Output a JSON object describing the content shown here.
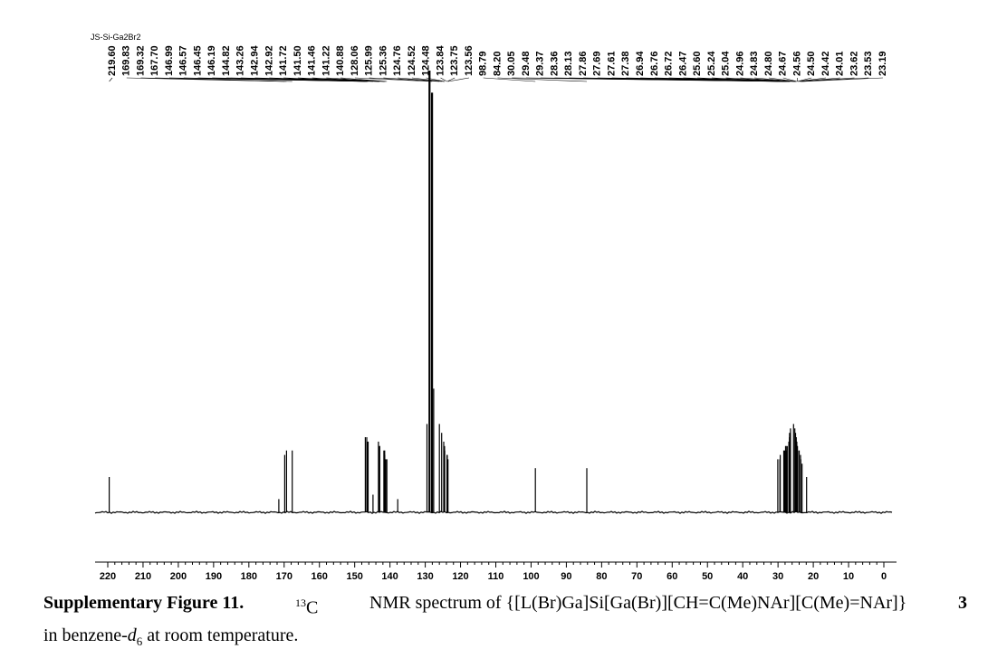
{
  "figure": {
    "sample_id": "JS-Si-Ga2Br2",
    "caption": {
      "label": "Supplementary Figure 11.",
      "nucleus_mass": "13",
      "nucleus_symbol": "C",
      "text_main": "NMR spectrum of {[L(Br)Ga]Si[Ga(Br)][CH=C(Me)NAr][C(Me)=NAr]}",
      "compound_number": "3",
      "line2_prefix": "in benzene-",
      "line2_italic": "d",
      "line2_sub": "6",
      "line2_suffix": " at room temperature."
    }
  },
  "chart_data": {
    "type": "line",
    "title": "",
    "xlabel": "",
    "ylabel": "",
    "x_unit": "ppm",
    "x_reversed": true,
    "xlim": [
      220,
      0
    ],
    "x_ticks": [
      220,
      210,
      200,
      190,
      180,
      170,
      160,
      150,
      140,
      130,
      120,
      110,
      100,
      90,
      80,
      70,
      60,
      50,
      40,
      30,
      20,
      10,
      0
    ],
    "grid": false,
    "peak_labels": [
      "219.60",
      "169.83",
      "169.32",
      "167.70",
      "146.99",
      "146.57",
      "146.45",
      "146.19",
      "144.82",
      "143.26",
      "142.94",
      "142.92",
      "141.72",
      "141.50",
      "141.46",
      "141.22",
      "140.88",
      "128.06",
      "125.99",
      "125.36",
      "124.76",
      "124.52",
      "124.48",
      "123.84",
      "123.75",
      "123.56",
      "98.79",
      "84.20",
      "30.05",
      "29.48",
      "29.37",
      "28.36",
      "28.13",
      "27.86",
      "27.69",
      "27.61",
      "27.38",
      "26.94",
      "26.76",
      "26.72",
      "26.47",
      "25.60",
      "25.24",
      "25.04",
      "24.96",
      "24.83",
      "24.80",
      "24.67",
      "24.56",
      "24.50",
      "24.42",
      "24.01",
      "23.62",
      "23.53",
      "23.19"
    ],
    "peaks": [
      {
        "x": 219.6,
        "y": 0.08
      },
      {
        "x": 169.83,
        "y": 0.13
      },
      {
        "x": 169.32,
        "y": 0.14
      },
      {
        "x": 167.7,
        "y": 0.14
      },
      {
        "x": 171.5,
        "y": 0.03
      },
      {
        "x": 146.99,
        "y": 0.17
      },
      {
        "x": 146.57,
        "y": 0.17
      },
      {
        "x": 146.45,
        "y": 0.16
      },
      {
        "x": 146.19,
        "y": 0.16
      },
      {
        "x": 144.82,
        "y": 0.04
      },
      {
        "x": 143.26,
        "y": 0.16
      },
      {
        "x": 142.94,
        "y": 0.15
      },
      {
        "x": 142.92,
        "y": 0.15
      },
      {
        "x": 141.72,
        "y": 0.14
      },
      {
        "x": 141.5,
        "y": 0.14
      },
      {
        "x": 141.46,
        "y": 0.13
      },
      {
        "x": 141.22,
        "y": 0.12
      },
      {
        "x": 140.88,
        "y": 0.12
      },
      {
        "x": 137.8,
        "y": 0.03
      },
      {
        "x": 129.5,
        "y": 0.2
      },
      {
        "x": 128.8,
        "y": 1.0
      },
      {
        "x": 128.06,
        "y": 0.95
      },
      {
        "x": 127.6,
        "y": 0.28
      },
      {
        "x": 125.99,
        "y": 0.2
      },
      {
        "x": 125.36,
        "y": 0.18
      },
      {
        "x": 124.76,
        "y": 0.16
      },
      {
        "x": 124.52,
        "y": 0.15
      },
      {
        "x": 124.48,
        "y": 0.14
      },
      {
        "x": 123.84,
        "y": 0.13
      },
      {
        "x": 123.75,
        "y": 0.13
      },
      {
        "x": 123.56,
        "y": 0.12
      },
      {
        "x": 98.79,
        "y": 0.1
      },
      {
        "x": 84.2,
        "y": 0.1
      },
      {
        "x": 30.05,
        "y": 0.12
      },
      {
        "x": 29.48,
        "y": 0.12
      },
      {
        "x": 29.37,
        "y": 0.13
      },
      {
        "x": 28.36,
        "y": 0.14
      },
      {
        "x": 28.13,
        "y": 0.14
      },
      {
        "x": 27.86,
        "y": 0.15
      },
      {
        "x": 27.69,
        "y": 0.15
      },
      {
        "x": 27.61,
        "y": 0.14
      },
      {
        "x": 27.38,
        "y": 0.15
      },
      {
        "x": 26.94,
        "y": 0.16
      },
      {
        "x": 26.76,
        "y": 0.17
      },
      {
        "x": 26.72,
        "y": 0.18
      },
      {
        "x": 26.47,
        "y": 0.19
      },
      {
        "x": 25.6,
        "y": 0.2
      },
      {
        "x": 25.24,
        "y": 0.19
      },
      {
        "x": 25.04,
        "y": 0.18
      },
      {
        "x": 24.96,
        "y": 0.17
      },
      {
        "x": 24.83,
        "y": 0.17
      },
      {
        "x": 24.8,
        "y": 0.16
      },
      {
        "x": 24.67,
        "y": 0.16
      },
      {
        "x": 24.56,
        "y": 0.15
      },
      {
        "x": 24.5,
        "y": 0.15
      },
      {
        "x": 24.42,
        "y": 0.14
      },
      {
        "x": 24.01,
        "y": 0.14
      },
      {
        "x": 23.62,
        "y": 0.13
      },
      {
        "x": 23.53,
        "y": 0.12
      },
      {
        "x": 23.19,
        "y": 0.11
      },
      {
        "x": 21.9,
        "y": 0.08
      }
    ]
  }
}
